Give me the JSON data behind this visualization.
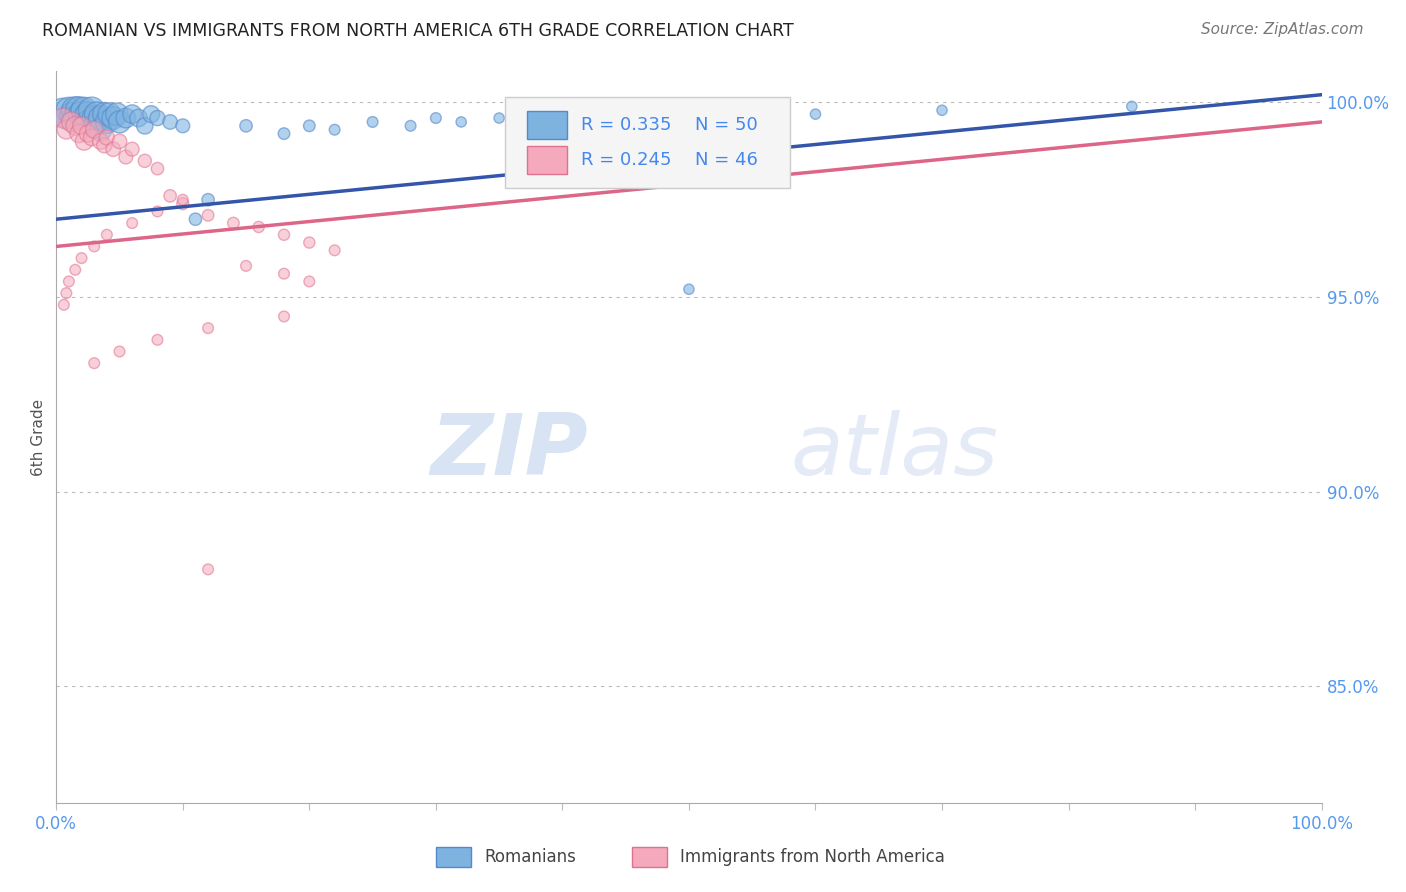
{
  "title": "ROMANIAN VS IMMIGRANTS FROM NORTH AMERICA 6TH GRADE CORRELATION CHART",
  "source": "Source: ZipAtlas.com",
  "ylabel": "6th Grade",
  "xlim": [
    0.0,
    1.0
  ],
  "ylim": [
    0.82,
    1.008
  ],
  "yticks": [
    0.85,
    0.9,
    0.95,
    1.0
  ],
  "ytick_labels": [
    "85.0%",
    "90.0%",
    "95.0%",
    "100.0%"
  ],
  "xtick_positions": [
    0.0,
    0.1,
    0.2,
    0.3,
    0.4,
    0.5,
    0.6,
    0.7,
    0.8,
    0.9,
    1.0
  ],
  "blue_color": "#7EB3E0",
  "pink_color": "#F4AABC",
  "blue_edge_color": "#5588CC",
  "pink_edge_color": "#E07090",
  "blue_line_color": "#3355AA",
  "pink_line_color": "#DD6688",
  "legend_R_blue": "R = 0.335",
  "legend_N_blue": "N = 50",
  "legend_R_pink": "R = 0.245",
  "legend_N_pink": "N = 46",
  "legend_text_color": "#4488EE",
  "tick_color": "#5599EE",
  "blue_scatter_x": [
    0.005,
    0.008,
    0.01,
    0.012,
    0.015,
    0.015,
    0.018,
    0.02,
    0.022,
    0.022,
    0.025,
    0.025,
    0.028,
    0.03,
    0.03,
    0.032,
    0.035,
    0.035,
    0.038,
    0.04,
    0.042,
    0.045,
    0.048,
    0.05,
    0.055,
    0.06,
    0.065,
    0.07,
    0.075,
    0.08,
    0.09,
    0.1,
    0.11,
    0.12,
    0.15,
    0.18,
    0.2,
    0.22,
    0.25,
    0.28,
    0.3,
    0.32,
    0.35,
    0.38,
    0.4,
    0.45,
    0.5,
    0.6,
    0.7,
    0.85
  ],
  "blue_scatter_y": [
    0.998,
    0.996,
    0.998,
    0.997,
    0.998,
    0.996,
    0.998,
    0.997,
    0.996,
    0.998,
    0.997,
    0.995,
    0.998,
    0.996,
    0.994,
    0.997,
    0.996,
    0.993,
    0.997,
    0.995,
    0.997,
    0.996,
    0.997,
    0.995,
    0.996,
    0.997,
    0.996,
    0.994,
    0.997,
    0.996,
    0.995,
    0.994,
    0.97,
    0.975,
    0.994,
    0.992,
    0.994,
    0.993,
    0.995,
    0.994,
    0.996,
    0.995,
    0.996,
    0.997,
    0.996,
    0.997,
    0.952,
    0.997,
    0.998,
    0.999
  ],
  "blue_scatter_sizes": [
    300,
    250,
    350,
    280,
    380,
    300,
    380,
    340,
    300,
    350,
    320,
    280,
    360,
    300,
    260,
    310,
    300,
    260,
    280,
    270,
    270,
    260,
    260,
    250,
    200,
    180,
    160,
    140,
    150,
    120,
    110,
    100,
    80,
    80,
    80,
    70,
    70,
    60,
    60,
    60,
    60,
    55,
    55,
    55,
    55,
    55,
    55,
    55,
    55,
    55
  ],
  "pink_scatter_x": [
    0.005,
    0.008,
    0.012,
    0.015,
    0.018,
    0.02,
    0.022,
    0.025,
    0.028,
    0.03,
    0.035,
    0.038,
    0.04,
    0.045,
    0.05,
    0.055,
    0.06,
    0.07,
    0.08,
    0.09,
    0.1,
    0.12,
    0.14,
    0.16,
    0.18,
    0.2,
    0.22,
    0.15,
    0.18,
    0.2,
    0.12,
    0.1,
    0.08,
    0.06,
    0.04,
    0.03,
    0.02,
    0.015,
    0.01,
    0.008,
    0.006,
    0.18,
    0.12,
    0.08,
    0.05,
    0.03
  ],
  "pink_scatter_y": [
    0.996,
    0.993,
    0.995,
    0.994,
    0.992,
    0.994,
    0.99,
    0.992,
    0.991,
    0.993,
    0.99,
    0.989,
    0.991,
    0.988,
    0.99,
    0.986,
    0.988,
    0.985,
    0.983,
    0.976,
    0.974,
    0.971,
    0.969,
    0.968,
    0.966,
    0.964,
    0.962,
    0.958,
    0.956,
    0.954,
    0.88,
    0.975,
    0.972,
    0.969,
    0.966,
    0.963,
    0.96,
    0.957,
    0.954,
    0.951,
    0.948,
    0.945,
    0.942,
    0.939,
    0.936,
    0.933
  ],
  "pink_scatter_sizes": [
    200,
    180,
    200,
    180,
    170,
    160,
    160,
    150,
    140,
    150,
    130,
    120,
    120,
    110,
    110,
    100,
    100,
    90,
    80,
    80,
    75,
    70,
    70,
    65,
    65,
    65,
    60,
    60,
    60,
    60,
    60,
    60,
    60,
    60,
    60,
    60,
    60,
    60,
    60,
    60,
    60,
    60,
    60,
    60,
    60,
    60
  ],
  "watermark_zip": "ZIP",
  "watermark_atlas": "atlas",
  "background_color": "#FFFFFF",
  "grid_color": "#BBBBBB",
  "legend_box_color": "#F5F5F5",
  "legend_box_edge": "#CCCCCC"
}
